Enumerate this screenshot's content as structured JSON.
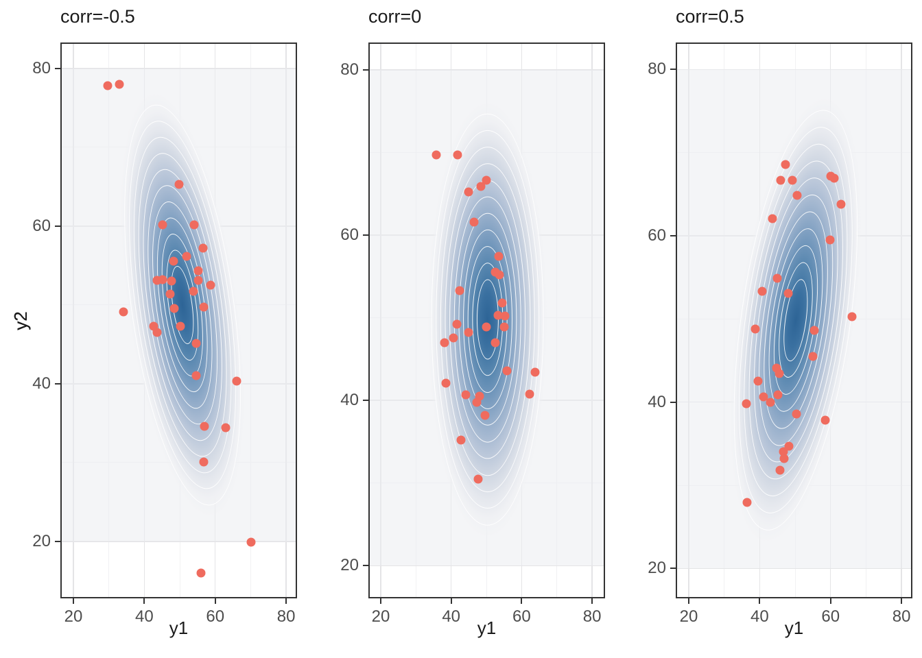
{
  "figure": {
    "background": "#ffffff",
    "description": "Three bivariate normal density contour plots with scatter points, correlations -0.5, 0 and 0.5"
  },
  "colors": {
    "point": "#EF6B5E",
    "contour_line": "#FFFFFF",
    "density_center": "#2D6496",
    "density_mid": "#7599BD",
    "density_edge": "#F5F5F7",
    "grid_major": "#E4E4E6",
    "grid_minor": "#F1F1F3",
    "panel_border": "#333333",
    "tick_label": "#4D4D4D",
    "text": "#1A1A1A"
  },
  "chart_data": [
    {
      "type": "scatter",
      "title": "corr=-0.5",
      "xlabel": "y1",
      "ylabel": "y2",
      "xlim": [
        16.32,
        83.08
      ],
      "ylim": [
        12.77,
        83.3
      ],
      "xticks": [
        20,
        40,
        60,
        80
      ],
      "yticks": [
        20,
        40,
        60,
        80
      ],
      "x_minor": [
        30,
        50,
        70
      ],
      "y_minor": [
        30,
        50,
        70
      ],
      "grid": true,
      "legend": "none",
      "points": [
        [
          29.7,
          77.8
        ],
        [
          32.9,
          78.0
        ],
        [
          49.8,
          65.3
        ],
        [
          45.2,
          60.2
        ],
        [
          54.1,
          60.2
        ],
        [
          56.6,
          57.2
        ],
        [
          51.9,
          56.2
        ],
        [
          48.3,
          55.6
        ],
        [
          55.3,
          54.3
        ],
        [
          43.6,
          53.1
        ],
        [
          45.2,
          53.2
        ],
        [
          47.7,
          53.0
        ],
        [
          55.3,
          53.1
        ],
        [
          58.7,
          52.5
        ],
        [
          53.9,
          51.7
        ],
        [
          47.2,
          51.4
        ],
        [
          34.2,
          49.1
        ],
        [
          48.4,
          49.6
        ],
        [
          56.8,
          49.7
        ],
        [
          42.6,
          47.3
        ],
        [
          50.2,
          47.3
        ],
        [
          43.7,
          46.5
        ],
        [
          54.6,
          45.1
        ],
        [
          54.7,
          41.0
        ],
        [
          66.1,
          40.3
        ],
        [
          57.0,
          34.6
        ],
        [
          62.9,
          34.4
        ],
        [
          56.7,
          30.1
        ],
        [
          70.1,
          19.9
        ],
        [
          55.9,
          16.0
        ]
      ],
      "density": {
        "center": [
          50.8,
          50.0
        ],
        "width_units": 29.0,
        "height_units": 51.3,
        "tilt_deg": -8,
        "levels": 11,
        "field_y_range": [
          20,
          80
        ]
      }
    },
    {
      "type": "scatter",
      "title": "corr=0",
      "xlabel": "y1",
      "ylabel": "y2",
      "xlim": [
        16.5,
        83.68
      ],
      "ylim": [
        16.05,
        83.3
      ],
      "xticks": [
        20,
        40,
        60,
        80
      ],
      "yticks": [
        20,
        40,
        60,
        80
      ],
      "x_minor": [
        30,
        50,
        70
      ],
      "y_minor": [
        30,
        50,
        70
      ],
      "grid": true,
      "legend": "none",
      "points": [
        [
          35.7,
          69.7
        ],
        [
          41.9,
          69.7
        ],
        [
          49.9,
          66.6
        ],
        [
          48.4,
          65.9
        ],
        [
          45.0,
          65.2
        ],
        [
          46.5,
          61.6
        ],
        [
          53.5,
          57.4
        ],
        [
          52.5,
          55.5
        ],
        [
          53.7,
          55.2
        ],
        [
          42.4,
          53.3
        ],
        [
          54.4,
          51.8
        ],
        [
          53.4,
          50.3
        ],
        [
          55.2,
          50.2
        ],
        [
          41.6,
          49.2
        ],
        [
          50.0,
          48.9
        ],
        [
          55.0,
          48.9
        ],
        [
          44.9,
          48.2
        ],
        [
          40.6,
          47.6
        ],
        [
          38.1,
          47.0
        ],
        [
          52.5,
          47.0
        ],
        [
          55.8,
          43.6
        ],
        [
          63.8,
          43.4
        ],
        [
          38.5,
          42.1
        ],
        [
          62.2,
          40.8
        ],
        [
          44.2,
          40.7
        ],
        [
          48.1,
          40.5
        ],
        [
          47.2,
          39.8
        ],
        [
          49.7,
          38.2
        ],
        [
          42.8,
          35.2
        ],
        [
          47.6,
          30.5
        ]
      ],
      "density": {
        "center": [
          50.3,
          49.8
        ],
        "width_units": 32.1,
        "height_units": 49.8,
        "tilt_deg": 0,
        "levels": 11,
        "field_y_range": [
          20,
          80
        ]
      }
    },
    {
      "type": "scatter",
      "title": "corr=0.5",
      "xlabel": "y1",
      "ylabel": "y2",
      "xlim": [
        16.32,
        83.08
      ],
      "ylim": [
        16.4,
        83.25
      ],
      "xticks": [
        20,
        40,
        60,
        80
      ],
      "yticks": [
        20,
        40,
        60,
        80
      ],
      "x_minor": [
        30,
        50,
        70
      ],
      "y_minor": [
        30,
        50,
        70
      ],
      "grid": true,
      "legend": "none",
      "points": [
        [
          47.2,
          68.6
        ],
        [
          60.0,
          67.2
        ],
        [
          61.0,
          66.9
        ],
        [
          45.9,
          66.7
        ],
        [
          49.2,
          66.7
        ],
        [
          50.5,
          64.9
        ],
        [
          62.9,
          63.8
        ],
        [
          43.6,
          62.1
        ],
        [
          59.9,
          59.5
        ],
        [
          44.9,
          54.9
        ],
        [
          40.7,
          53.3
        ],
        [
          48.1,
          53.1
        ],
        [
          66.0,
          50.3
        ],
        [
          38.8,
          48.8
        ],
        [
          55.5,
          48.6
        ],
        [
          55.0,
          45.5
        ],
        [
          44.7,
          44.1
        ],
        [
          45.5,
          43.4
        ],
        [
          39.5,
          42.5
        ],
        [
          45.2,
          40.9
        ],
        [
          41.0,
          40.6
        ],
        [
          43.1,
          40.0
        ],
        [
          36.2,
          39.8
        ],
        [
          50.3,
          38.6
        ],
        [
          58.5,
          37.8
        ],
        [
          48.3,
          34.7
        ],
        [
          46.7,
          34.0
        ],
        [
          46.9,
          33.2
        ],
        [
          45.7,
          31.8
        ],
        [
          36.4,
          27.9
        ]
      ],
      "density": {
        "center": [
          50.2,
          49.9
        ],
        "width_units": 31.0,
        "height_units": 51.0,
        "tilt_deg": 8,
        "levels": 11,
        "field_y_range": [
          20,
          80
        ]
      }
    }
  ]
}
